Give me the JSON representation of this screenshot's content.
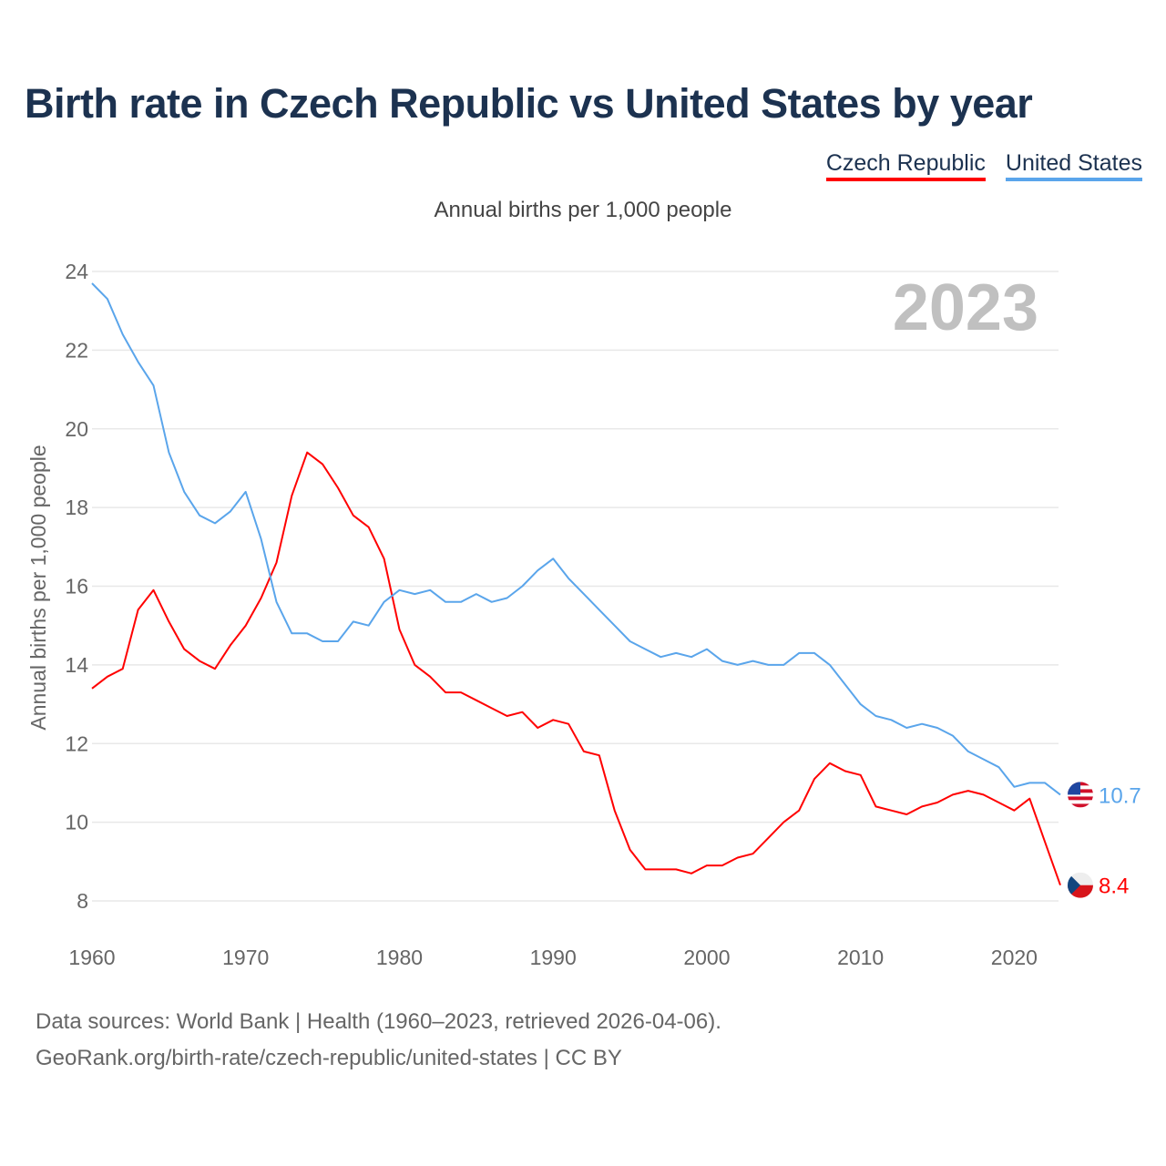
{
  "chart_data": {
    "type": "line",
    "title": "Birth rate in Czech Republic vs United States by year",
    "subtitle": "Annual births per 1,000 people",
    "xlabel": "",
    "ylabel": "Annual births per 1,000 people",
    "year_label": "2023",
    "xlim": [
      1960,
      2023
    ],
    "ylim": [
      8,
      24
    ],
    "xticks": [
      "1960",
      "1970",
      "1980",
      "1990",
      "2000",
      "2010",
      "2020"
    ],
    "yticks": [
      "8",
      "10",
      "12",
      "14",
      "16",
      "18",
      "20",
      "22",
      "24"
    ],
    "grid": true,
    "legend_position": "top-right",
    "x_start": 1960,
    "series": [
      {
        "name": "Czech Republic",
        "color": "#ff0000",
        "end_label": "8.4",
        "flag": "czech-flag-icon",
        "values": [
          13.4,
          13.7,
          13.9,
          15.4,
          15.9,
          15.1,
          14.4,
          14.1,
          13.9,
          14.5,
          15.0,
          15.7,
          16.6,
          18.3,
          19.4,
          19.1,
          18.5,
          17.8,
          17.5,
          16.7,
          14.9,
          14.0,
          13.7,
          13.3,
          13.3,
          13.1,
          12.9,
          12.7,
          12.8,
          12.4,
          12.6,
          12.5,
          11.8,
          11.7,
          10.3,
          9.3,
          8.8,
          8.8,
          8.8,
          8.7,
          8.9,
          8.9,
          9.1,
          9.2,
          9.6,
          10.0,
          10.3,
          11.1,
          11.5,
          11.3,
          11.2,
          10.4,
          10.3,
          10.2,
          10.4,
          10.5,
          10.7,
          10.8,
          10.7,
          10.5,
          10.3,
          10.6,
          9.5,
          8.4
        ]
      },
      {
        "name": "United States",
        "color": "#5aa5eb",
        "end_label": "10.7",
        "flag": "us-flag-icon",
        "values": [
          23.7,
          23.3,
          22.4,
          21.7,
          21.1,
          19.4,
          18.4,
          17.8,
          17.6,
          17.9,
          18.4,
          17.2,
          15.6,
          14.8,
          14.8,
          14.6,
          14.6,
          15.1,
          15.0,
          15.6,
          15.9,
          15.8,
          15.9,
          15.6,
          15.6,
          15.8,
          15.6,
          15.7,
          16.0,
          16.4,
          16.7,
          16.2,
          15.8,
          15.4,
          15.0,
          14.6,
          14.4,
          14.2,
          14.3,
          14.2,
          14.4,
          14.1,
          14.0,
          14.1,
          14.0,
          14.0,
          14.3,
          14.3,
          14.0,
          13.5,
          13.0,
          12.7,
          12.6,
          12.4,
          12.5,
          12.4,
          12.2,
          11.8,
          11.6,
          11.4,
          10.9,
          11.0,
          11.0,
          10.7
        ]
      }
    ]
  },
  "footer": {
    "line1": "Data sources: World Bank | Health (1960–2023, retrieved 2026-04-06).",
    "line2": "GeoRank.org/birth-rate/czech-republic/united-states | CC BY"
  }
}
